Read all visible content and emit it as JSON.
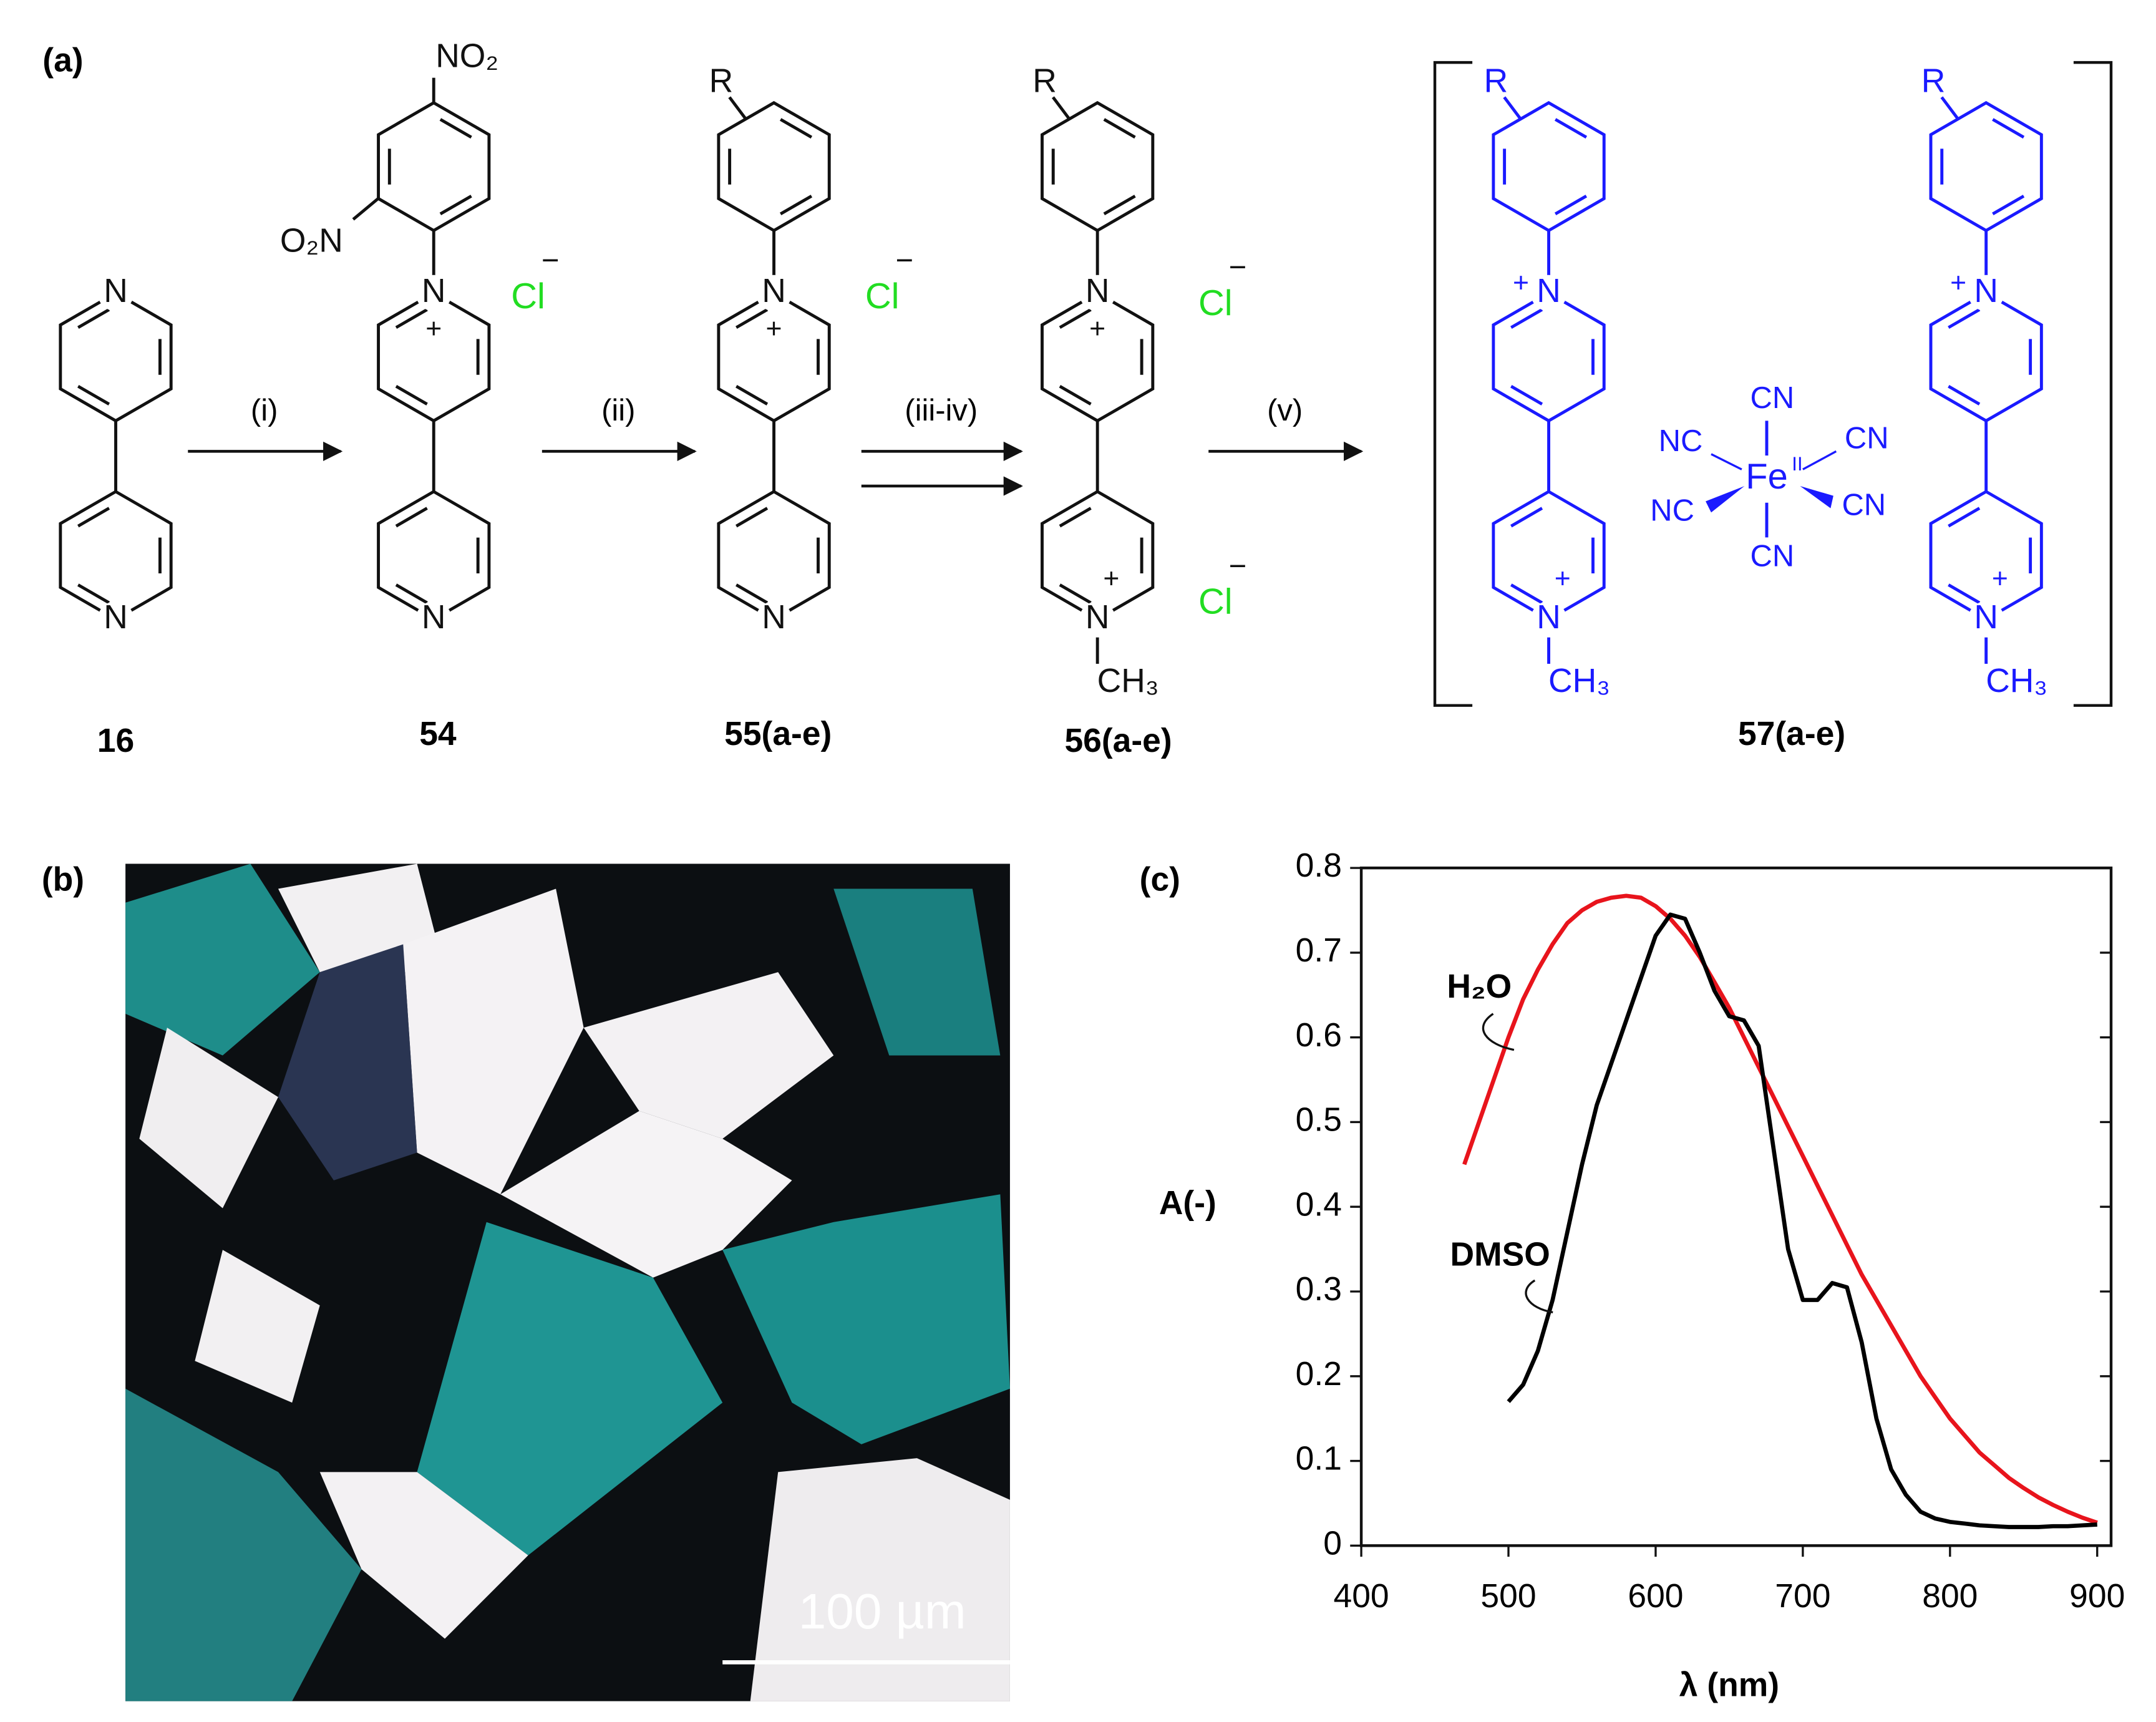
{
  "panel_labels": [
    "(a)",
    "(b)",
    "(c)"
  ],
  "scheme": {
    "atoms": {
      "N": "N",
      "Cl": "Cl",
      "R": "R",
      "NO2": "NO₂",
      "O2N": "O₂N",
      "CH3": "CH₃",
      "CN": "CN",
      "NC": "NC",
      "Fe": "Fe",
      "oxidation": "II",
      "plus": "+",
      "minus": "−"
    },
    "steps": [
      "(i)",
      "(ii)",
      "(iii-iv)",
      "(v)"
    ],
    "compounds": [
      "16",
      "54",
      "55(a-e)",
      "56(a-e)",
      "57(a-e)"
    ]
  },
  "micrograph": {
    "scale_bar": "100 µm"
  },
  "chart_data": {
    "type": "line",
    "xlabel": "λ (nm)",
    "ylabel": "A(-)",
    "xlim": [
      400,
      900
    ],
    "ylim": [
      0,
      0.8
    ],
    "xticks": [
      400,
      500,
      600,
      700,
      800,
      900
    ],
    "yticks": [
      0,
      0.1,
      0.2,
      0.3,
      0.4,
      0.5,
      0.6,
      0.7,
      0.8
    ],
    "x": [
      470,
      480,
      490,
      500,
      510,
      520,
      530,
      540,
      550,
      560,
      570,
      580,
      590,
      600,
      610,
      620,
      630,
      640,
      650,
      660,
      670,
      680,
      690,
      700,
      710,
      720,
      730,
      740,
      750,
      760,
      770,
      780,
      790,
      800,
      810,
      820,
      830,
      840,
      850,
      860,
      870,
      880,
      890,
      900
    ],
    "series": [
      {
        "name": "H₂O",
        "color": "#e8141c",
        "values": [
          0.45,
          0.5,
          0.55,
          0.6,
          0.645,
          0.68,
          0.71,
          0.735,
          0.75,
          0.76,
          0.765,
          0.767,
          0.765,
          0.755,
          0.74,
          0.72,
          0.695,
          0.665,
          0.635,
          0.6,
          0.565,
          0.53,
          0.495,
          0.46,
          0.425,
          0.39,
          0.355,
          0.32,
          0.29,
          0.26,
          0.23,
          0.2,
          0.175,
          0.15,
          0.13,
          0.11,
          0.095,
          0.08,
          0.068,
          0.057,
          0.048,
          0.04,
          0.033,
          0.027
        ]
      },
      {
        "name": "DMSO",
        "color": "#000000",
        "values": [
          null,
          null,
          null,
          0.17,
          0.19,
          0.23,
          0.29,
          0.37,
          0.45,
          0.52,
          0.57,
          0.62,
          0.67,
          0.72,
          0.745,
          0.74,
          0.7,
          0.655,
          0.625,
          0.62,
          0.59,
          0.47,
          0.35,
          0.29,
          0.29,
          0.31,
          0.305,
          0.24,
          0.15,
          0.09,
          0.06,
          0.04,
          0.032,
          0.028,
          0.026,
          0.024,
          0.023,
          0.022,
          0.022,
          0.022,
          0.023,
          0.023,
          0.024,
          0.025
        ]
      }
    ]
  }
}
